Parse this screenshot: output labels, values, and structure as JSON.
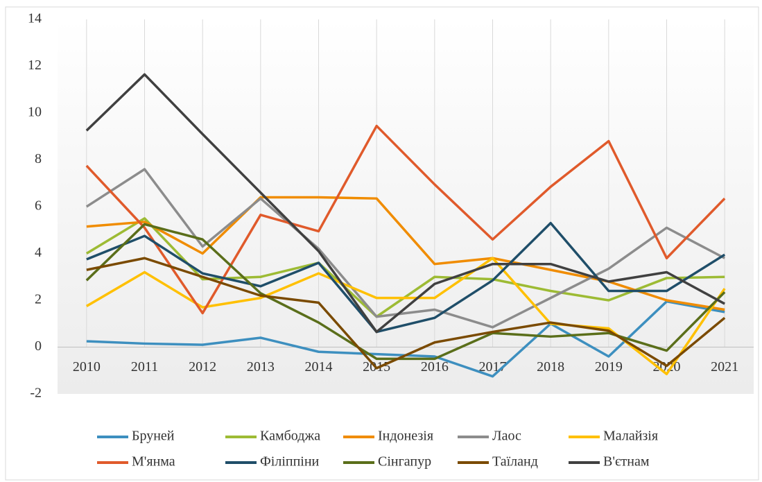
{
  "chart_data": {
    "type": "line",
    "categories": [
      "2010",
      "2011",
      "2012",
      "2013",
      "2014",
      "2015",
      "2016",
      "2017",
      "2018",
      "2019",
      "2020",
      "2021"
    ],
    "ylim": [
      -2,
      14
    ],
    "yticks": [
      -2,
      0,
      2,
      4,
      6,
      8,
      10,
      12,
      14
    ],
    "grid": true,
    "legend": "bottom",
    "series": [
      {
        "name": "Бруней",
        "color": "#3d8fbf",
        "values": [
          0.25,
          0.15,
          0.1,
          0.4,
          -0.2,
          -0.3,
          -0.4,
          -1.25,
          1.0,
          -0.4,
          1.95,
          1.5
        ]
      },
      {
        "name": "Камбоджа",
        "color": "#9dbb34",
        "values": [
          4.0,
          5.5,
          2.9,
          3.0,
          3.6,
          1.3,
          3.0,
          2.9,
          2.4,
          2.0,
          2.95,
          3.0
        ]
      },
      {
        "name": "Індонезія",
        "color": "#f08c00",
        "values": [
          5.15,
          5.35,
          4.0,
          6.4,
          6.4,
          6.35,
          3.55,
          3.8,
          3.3,
          2.8,
          2.0,
          1.6
        ]
      },
      {
        "name": "Лаос",
        "color": "#8c8c8c",
        "values": [
          6.0,
          7.6,
          4.3,
          6.35,
          4.2,
          1.3,
          1.6,
          0.85,
          2.1,
          3.35,
          5.1,
          3.8
        ]
      },
      {
        "name": "Малайзія",
        "color": "#ffc000",
        "values": [
          1.75,
          3.2,
          1.7,
          2.1,
          3.15,
          2.1,
          2.1,
          3.8,
          1.0,
          0.8,
          -1.15,
          2.5
        ]
      },
      {
        "name": "М'янма",
        "color": "#e05a2b",
        "values": [
          7.75,
          5.1,
          1.45,
          5.65,
          4.95,
          9.45,
          6.95,
          4.6,
          6.85,
          8.8,
          3.8,
          6.35
        ]
      },
      {
        "name": "Філіппіни",
        "color": "#1f4e69",
        "values": [
          3.75,
          4.75,
          3.15,
          2.6,
          3.6,
          0.65,
          1.25,
          2.85,
          5.3,
          2.4,
          2.4,
          3.95
        ]
      },
      {
        "name": "Сінгапур",
        "color": "#5a6e1a",
        "values": [
          2.85,
          5.25,
          4.6,
          2.3,
          1.05,
          -0.5,
          -0.5,
          0.6,
          0.45,
          0.6,
          -0.15,
          2.35
        ]
      },
      {
        "name": "Таїланд",
        "color": "#7a4a00",
        "values": [
          3.3,
          3.8,
          3.0,
          2.2,
          1.9,
          -0.9,
          0.2,
          0.65,
          1.05,
          0.7,
          -0.8,
          1.25
        ]
      },
      {
        "name": "В'єтнам",
        "color": "#404040",
        "values": [
          9.25,
          11.65,
          9.1,
          6.6,
          4.1,
          0.65,
          2.7,
          3.55,
          3.55,
          2.8,
          3.2,
          1.85
        ]
      }
    ]
  }
}
